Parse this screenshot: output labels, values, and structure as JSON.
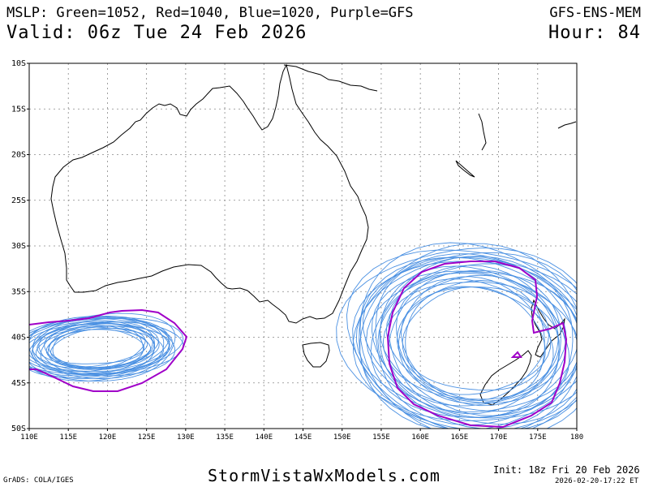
{
  "header": {
    "legend_line": "MSLP: Green=1052, Red=1040, Blue=1020, Purple=GFS",
    "valid_line": "Valid: 06z Tue 24 Feb 2026",
    "model": "GFS-ENS-MEM",
    "hour": "Hour: 84"
  },
  "map": {
    "lat_labels": [
      "10S",
      "15S",
      "20S",
      "25S",
      "30S",
      "35S",
      "40S",
      "45S",
      "50S"
    ],
    "lon_labels": [
      "110E",
      "115E",
      "120E",
      "125E",
      "130E",
      "135E",
      "140E",
      "145E",
      "150E",
      "155E",
      "160E",
      "165E",
      "170E",
      "175E",
      "180"
    ],
    "colors": {
      "coastline": "#000000",
      "blue_contour": "#4a90e2",
      "purple_contour": "#a000c8",
      "grid": "#888888"
    }
  },
  "footer": {
    "grads": "GrADS: COLA/IGES",
    "site": "StormVistaWxModels.com",
    "init": "Init: 18z Fri 20 Feb 2026",
    "timestamp": "2026-02-20-17:22 ET"
  }
}
